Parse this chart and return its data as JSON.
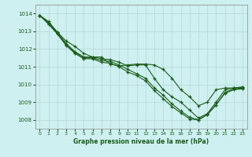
{
  "title": "Graphe pression niveau de la mer (hPa)",
  "background_color": "#cff0f0",
  "grid_color": "#b0d8d8",
  "line_color": "#1a5c1a",
  "xlim": [
    -0.5,
    23.5
  ],
  "ylim": [
    1007.5,
    1014.5
  ],
  "yticks": [
    1008,
    1009,
    1010,
    1011,
    1012,
    1013,
    1014
  ],
  "xticks": [
    0,
    1,
    2,
    3,
    4,
    5,
    6,
    7,
    8,
    9,
    10,
    11,
    12,
    13,
    14,
    15,
    16,
    17,
    18,
    19,
    20,
    21,
    22,
    23
  ],
  "series": [
    [
      1013.9,
      1013.55,
      1012.95,
      1012.45,
      1012.15,
      1011.75,
      1011.55,
      1011.55,
      1011.15,
      1011.05,
      1011.1,
      1011.15,
      1011.15,
      1011.1,
      1010.85,
      1010.35,
      1009.7,
      1009.3,
      1008.8,
      1009.0,
      1009.7,
      1009.8,
      1009.8,
      1009.85
    ],
    [
      1013.9,
      1013.5,
      1012.95,
      1012.3,
      1011.85,
      1011.55,
      1011.55,
      1011.45,
      1011.4,
      1011.25,
      1011.05,
      1011.1,
      1011.1,
      1010.35,
      1009.7,
      1009.3,
      1009.0,
      1008.55,
      1008.1,
      1008.35,
      1009.0,
      1009.7,
      1009.8,
      1009.85
    ],
    [
      1013.9,
      1013.45,
      1012.9,
      1012.25,
      1011.8,
      1011.5,
      1011.5,
      1011.35,
      1011.3,
      1011.1,
      1010.85,
      1010.6,
      1010.35,
      1009.8,
      1009.4,
      1008.9,
      1008.5,
      1008.15,
      1008.0,
      1008.3,
      1008.85,
      1009.55,
      1009.75,
      1009.8
    ],
    [
      1013.9,
      1013.4,
      1012.85,
      1012.2,
      1011.75,
      1011.45,
      1011.45,
      1011.25,
      1011.2,
      1011.0,
      1010.7,
      1010.5,
      1010.2,
      1009.65,
      1009.2,
      1008.75,
      1008.4,
      1008.05,
      1008.0,
      1008.3,
      1008.85,
      1009.5,
      1009.7,
      1009.75
    ]
  ]
}
